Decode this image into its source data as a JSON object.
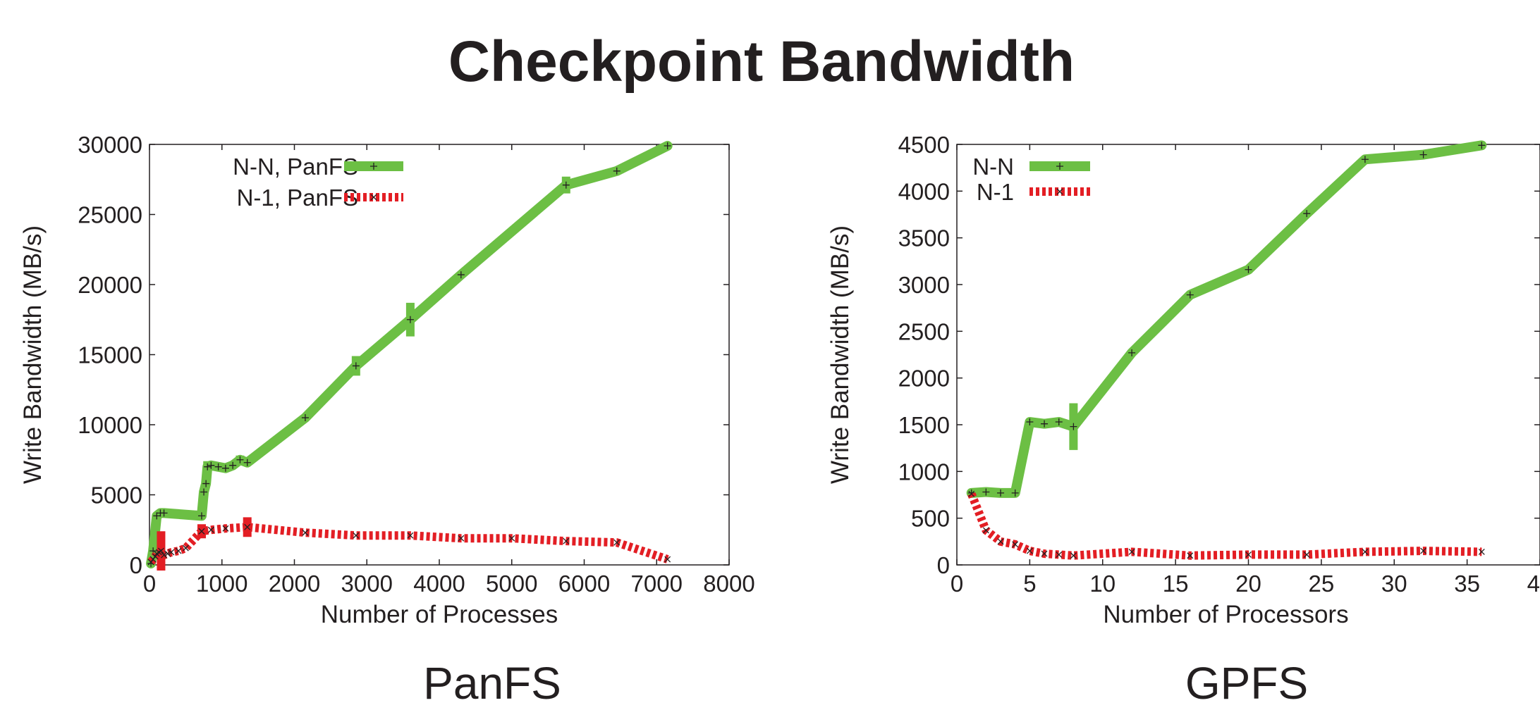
{
  "page": {
    "title": "Checkpoint Bandwidth",
    "left_label": "PanFS",
    "right_label": "GPFS"
  },
  "colors": {
    "nn": "#6cbf44",
    "n1": "#e31e24",
    "axis": "#231f20",
    "marker": "#231f20"
  },
  "chart_data": [
    {
      "type": "line",
      "xlabel": "Number of Processes",
      "ylabel": "Write Bandwidth (MB/s)",
      "xlim": [
        0,
        8000
      ],
      "ylim": [
        0,
        30000
      ],
      "xticks": [
        0,
        1000,
        2000,
        3000,
        4000,
        5000,
        6000,
        7000,
        8000
      ],
      "yticks": [
        0,
        5000,
        10000,
        15000,
        20000,
        25000,
        30000
      ],
      "legend_position": "top-left",
      "series": [
        {
          "name": "N-N, PanFS",
          "style": "solid",
          "x": [
            20,
            50,
            100,
            150,
            200,
            720,
            750,
            780,
            800,
            850,
            950,
            1050,
            1150,
            1250,
            1350,
            2150,
            2850,
            3600,
            4300,
            5750,
            6450,
            7150
          ],
          "y": [
            100,
            1000,
            3500,
            3700,
            3700,
            3500,
            5200,
            5800,
            7000,
            7100,
            7000,
            6900,
            7100,
            7500,
            7300,
            10500,
            14200,
            17500,
            20700,
            27100,
            28100,
            29900
          ],
          "error": [
            0,
            0,
            0,
            0,
            0,
            0,
            0,
            0,
            400,
            0,
            0,
            0,
            0,
            300,
            0,
            0,
            700,
            1200,
            0,
            600,
            0,
            0
          ]
        },
        {
          "name": "N-1, PanFS",
          "style": "dashed",
          "x": [
            20,
            50,
            80,
            100,
            130,
            160,
            200,
            250,
            300,
            400,
            500,
            720,
            850,
            1050,
            1350,
            2150,
            2850,
            3600,
            4300,
            5000,
            5750,
            6450,
            7150
          ],
          "y": [
            200,
            400,
            600,
            800,
            900,
            1000,
            700,
            800,
            900,
            1000,
            1200,
            2400,
            2500,
            2600,
            2700,
            2300,
            2100,
            2100,
            1900,
            1900,
            1700,
            1600,
            400
          ],
          "error": [
            0,
            0,
            0,
            0,
            0,
            1400,
            0,
            0,
            0,
            0,
            0,
            500,
            0,
            0,
            700,
            0,
            0,
            0,
            0,
            0,
            0,
            0,
            0
          ]
        }
      ]
    },
    {
      "type": "line",
      "xlabel": "Number of Processors",
      "ylabel": "Write Bandwidth (MB/s)",
      "xlim": [
        0,
        40
      ],
      "ylim": [
        0,
        4500
      ],
      "xticks": [
        0,
        5,
        10,
        15,
        20,
        25,
        30,
        35,
        40
      ],
      "yticks": [
        0,
        500,
        1000,
        1500,
        2000,
        2500,
        3000,
        3500,
        4000,
        4500
      ],
      "legend_position": "top-left",
      "series": [
        {
          "name": "N-N",
          "style": "solid",
          "x": [
            1,
            2,
            3,
            4,
            5,
            6,
            7,
            8,
            12,
            16,
            20,
            24,
            28,
            32,
            36
          ],
          "y": [
            770,
            780,
            770,
            770,
            1530,
            1510,
            1530,
            1480,
            2270,
            2890,
            3160,
            3760,
            4340,
            4390,
            4490
          ],
          "error": [
            0,
            0,
            0,
            0,
            0,
            0,
            0,
            250,
            0,
            0,
            0,
            0,
            0,
            0,
            0
          ]
        },
        {
          "name": "N-1",
          "style": "dashed",
          "x": [
            1,
            2,
            3,
            4,
            5,
            6,
            7,
            8,
            12,
            16,
            20,
            24,
            28,
            32,
            36
          ],
          "y": [
            760,
            370,
            250,
            220,
            150,
            120,
            110,
            100,
            140,
            100,
            110,
            110,
            140,
            150,
            140
          ],
          "error": [
            0,
            0,
            0,
            0,
            0,
            0,
            0,
            0,
            0,
            0,
            0,
            0,
            0,
            0,
            0
          ]
        }
      ]
    }
  ]
}
